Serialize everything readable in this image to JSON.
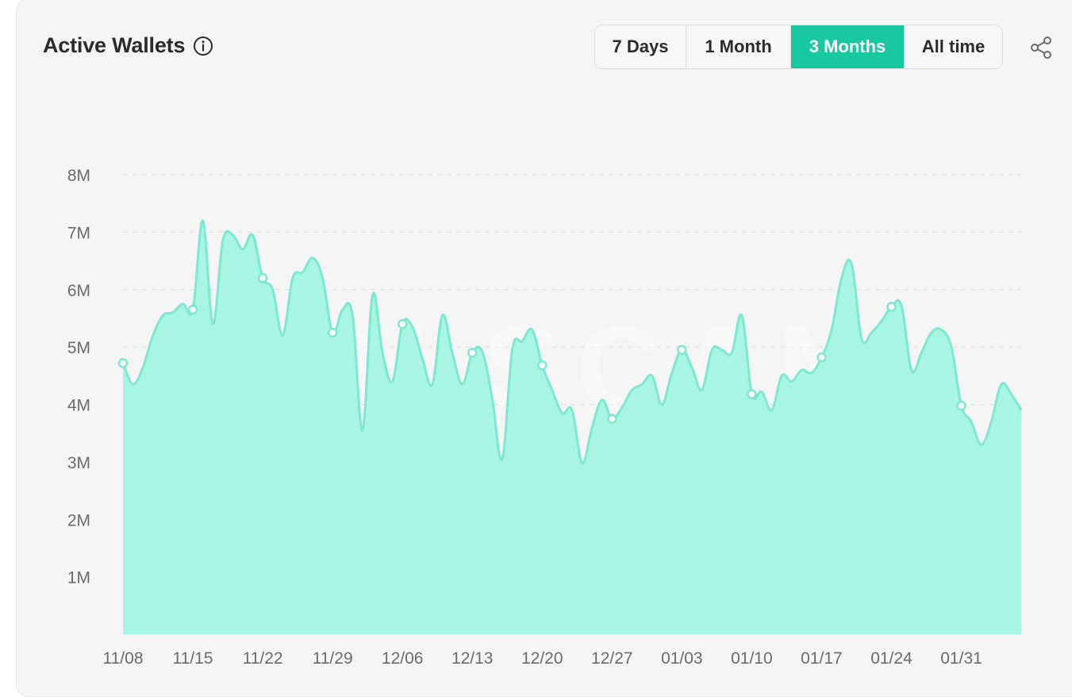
{
  "header": {
    "title": "Active Wallets",
    "info_icon": "info-circle-icon",
    "share_icon": "share-icon"
  },
  "range_buttons": [
    {
      "label": "7 Days",
      "active": false
    },
    {
      "label": "1 Month",
      "active": false
    },
    {
      "label": "3 Months",
      "active": true
    },
    {
      "label": "All time",
      "active": false
    }
  ],
  "watermark": "SOLSCAN",
  "colors": {
    "accent": "#18c8a0",
    "area_fill": "#a4f4e3",
    "line": "#7ce8d1",
    "axis_text": "#6b6b6b",
    "grid": "#dcdcdc"
  },
  "chart_data": {
    "type": "area",
    "title": "Active Wallets",
    "ylim": [
      0,
      8000000
    ],
    "yticks": [
      {
        "value": 1000000,
        "label": "1M"
      },
      {
        "value": 2000000,
        "label": "2M"
      },
      {
        "value": 3000000,
        "label": "3M"
      },
      {
        "value": 4000000,
        "label": "4M"
      },
      {
        "value": 5000000,
        "label": "5M"
      },
      {
        "value": 6000000,
        "label": "6M"
      },
      {
        "value": 7000000,
        "label": "7M"
      },
      {
        "value": 8000000,
        "label": "8M"
      }
    ],
    "xticks": [
      {
        "index": 0,
        "label": "11/08"
      },
      {
        "index": 7,
        "label": "11/15"
      },
      {
        "index": 14,
        "label": "11/22"
      },
      {
        "index": 21,
        "label": "11/29"
      },
      {
        "index": 28,
        "label": "12/06"
      },
      {
        "index": 35,
        "label": "12/13"
      },
      {
        "index": 42,
        "label": "12/20"
      },
      {
        "index": 49,
        "label": "12/27"
      },
      {
        "index": 56,
        "label": "01/03"
      },
      {
        "index": 63,
        "label": "01/10"
      },
      {
        "index": 70,
        "label": "01/17"
      },
      {
        "index": 77,
        "label": "01/24"
      },
      {
        "index": 84,
        "label": "01/31"
      }
    ],
    "grid": true,
    "legend": "none",
    "markers_every": 7,
    "series": [
      {
        "values": [
          4720000,
          4350000,
          4650000,
          5200000,
          5550000,
          5600000,
          5750000,
          5650000,
          7200000,
          5400000,
          6850000,
          6950000,
          6700000,
          6950000,
          6200000,
          6000000,
          5200000,
          6200000,
          6300000,
          6550000,
          6200000,
          5250000,
          5650000,
          5550000,
          3550000,
          5900000,
          4900000,
          4400000,
          5400000,
          5350000,
          4800000,
          4350000,
          5550000,
          4900000,
          4350000,
          4900000,
          4920000,
          4100000,
          3050000,
          4950000,
          5100000,
          5300000,
          4680000,
          4250000,
          3850000,
          3900000,
          2980000,
          3600000,
          4080000,
          3750000,
          3950000,
          4250000,
          4350000,
          4500000,
          4000000,
          4550000,
          4950000,
          4650000,
          4250000,
          4950000,
          4950000,
          4900000,
          5550000,
          4180000,
          4220000,
          3900000,
          4500000,
          4400000,
          4600000,
          4550000,
          4820000,
          5300000,
          6200000,
          6450000,
          5150000,
          5250000,
          5450000,
          5700000,
          5720000,
          4600000,
          4900000,
          5250000,
          5300000,
          5000000,
          3980000,
          3700000,
          3300000,
          3700000,
          4350000,
          4180000,
          3900000
        ]
      }
    ]
  }
}
